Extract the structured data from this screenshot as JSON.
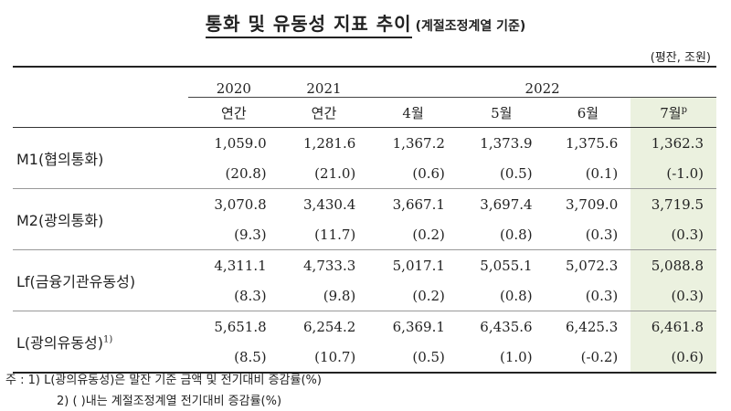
{
  "title": {
    "main": "통화 및 유동성 지표 추이",
    "sub": "(계절조정계열 기준)"
  },
  "unit": "(평잔, 조원)",
  "header": {
    "years": [
      "2020",
      "2021",
      "2022"
    ],
    "periods": [
      "연간",
      "연간",
      "4월",
      "5월",
      "6월",
      "7월"
    ],
    "prelim_mark": "p"
  },
  "rows": [
    {
      "label": "M1(협의통화)",
      "sup": "",
      "values": [
        "1,059.0",
        "1,281.6",
        "1,367.2",
        "1,373.9",
        "1,375.6",
        "1,362.3"
      ],
      "changes": [
        "(20.8)",
        "(21.0)",
        "(0.6)",
        "(0.5)",
        "(0.1)",
        "(-1.0)"
      ]
    },
    {
      "label": "M2(광의통화)",
      "sup": "",
      "values": [
        "3,070.8",
        "3,430.4",
        "3,667.1",
        "3,697.4",
        "3,709.0",
        "3,719.5"
      ],
      "changes": [
        "(9.3)",
        "(11.7)",
        "(0.2)",
        "(0.8)",
        "(0.3)",
        "(0.3)"
      ]
    },
    {
      "label": "Lf(금융기관유동성)",
      "sup": "",
      "values": [
        "4,311.1",
        "4,733.3",
        "5,017.1",
        "5,055.1",
        "5,072.3",
        "5,088.8"
      ],
      "changes": [
        "(8.3)",
        "(9.8)",
        "(0.2)",
        "(0.8)",
        "(0.3)",
        "(0.3)"
      ]
    },
    {
      "label": "L(광의유동성)",
      "sup": "1)",
      "values": [
        "5,651.8",
        "6,254.2",
        "6,369.1",
        "6,435.6",
        "6,425.3",
        "6,461.8"
      ],
      "changes": [
        "(8.5)",
        "(10.7)",
        "(0.5)",
        "(1.0)",
        "(-0.2)",
        "(0.6)"
      ]
    }
  ],
  "notes": {
    "line1": "주 :  1) L(광의유동성)은 말잔 기준 금액 및 전기대비 증감률(%)",
    "line2": "2) (    )내는 계절조정계열 전기대비 증감률(%)"
  },
  "colors": {
    "highlight": "#ebf1df"
  }
}
